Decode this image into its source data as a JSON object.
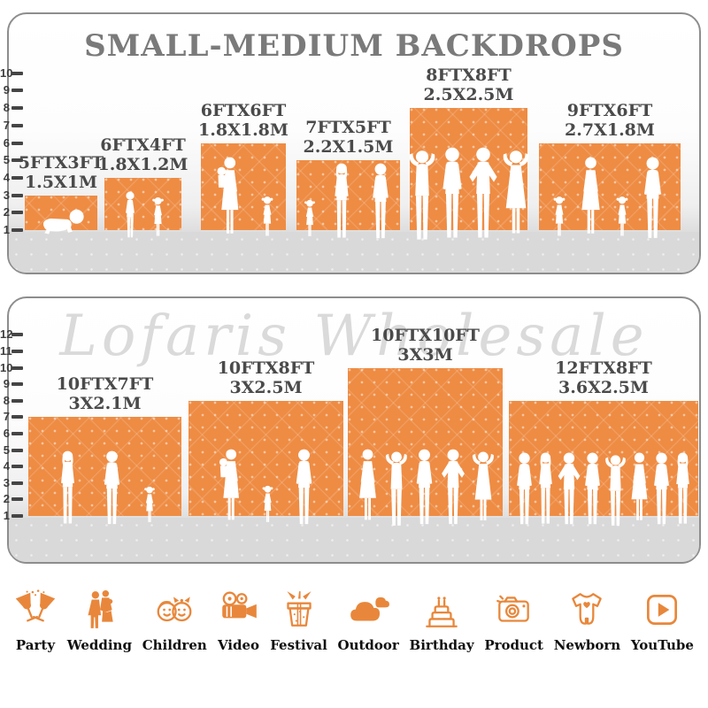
{
  "title": "SMALL-MEDIUM BACKDROPS",
  "watermark": "Lofaris Wholesale",
  "colors": {
    "backdrop_orange": "#EE8C44",
    "icon_orange": "#E8873B",
    "title_gray": "#7A7A7A",
    "label_charcoal": "#4A4A4A",
    "tick_dark": "#454545",
    "panel_border": "#8D8D8D",
    "floor_gray": "#D9D9D9",
    "silhouette_white": "#FFFFFF"
  },
  "panels": [
    {
      "name": "small-medium-backdrops",
      "ruler": [
        "1",
        "2",
        "3",
        "4",
        "5",
        "6",
        "7",
        "8",
        "9",
        "10"
      ],
      "backdrops": [
        {
          "size_ft": "5FTX3FT",
          "size_m": "1.5X1M",
          "height_ft": 3,
          "people": [
            "baby"
          ]
        },
        {
          "size_ft": "6FTX4FT",
          "size_m": "1.8X1.2M",
          "height_ft": 4,
          "people": [
            "boy",
            "girl"
          ]
        },
        {
          "size_ft": "6FTX6FT",
          "size_m": "1.8X1.8M",
          "height_ft": 6,
          "people": [
            "woman-baby",
            "girl"
          ]
        },
        {
          "size_ft": "7FTX5FT",
          "size_m": "2.2X1.5M",
          "height_ft": 5,
          "people": [
            "girl",
            "woman",
            "man"
          ]
        },
        {
          "size_ft": "8FTX8FT",
          "size_m": "2.5X2.5M",
          "height_ft": 8,
          "people": [
            "armsup",
            "man",
            "hips",
            "armsup-dress"
          ]
        },
        {
          "size_ft": "9FTX6FT",
          "size_m": "2.7X1.8M",
          "height_ft": 6,
          "people": [
            "girl",
            "woman-dress",
            "girl",
            "man"
          ]
        }
      ]
    },
    {
      "name": "large-backdrops",
      "ruler": [
        "1",
        "2",
        "3",
        "4",
        "5",
        "6",
        "7",
        "8",
        "9",
        "10",
        "11",
        "12"
      ],
      "backdrops": [
        {
          "size_ft": "10FTX7FT",
          "size_m": "3X2.1M",
          "height_ft": 7,
          "people": [
            "woman",
            "man",
            "girl"
          ]
        },
        {
          "size_ft": "10FTX8FT",
          "size_m": "3X2.5M",
          "height_ft": 8,
          "people": [
            "woman-baby",
            "girl",
            "man"
          ]
        },
        {
          "size_ft": "10FTX10FT",
          "size_m": "3X3M",
          "height_ft": 10,
          "people": [
            "woman-dress",
            "armsup",
            "man",
            "hips",
            "armsup-dress"
          ]
        },
        {
          "size_ft": "12FTX8FT",
          "size_m": "3.6X2.5M",
          "height_ft": 8,
          "people": [
            "man",
            "woman",
            "hips",
            "man",
            "armsup",
            "woman-dress",
            "man",
            "woman"
          ]
        }
      ]
    }
  ],
  "categories": [
    {
      "label": "Party",
      "icon": "party-icon"
    },
    {
      "label": "Wedding",
      "icon": "wedding-icon"
    },
    {
      "label": "Children",
      "icon": "children-icon"
    },
    {
      "label": "Video",
      "icon": "video-icon"
    },
    {
      "label": "Festival",
      "icon": "festival-icon"
    },
    {
      "label": "Outdoor",
      "icon": "outdoor-icon"
    },
    {
      "label": "Birthday",
      "icon": "birthday-icon"
    },
    {
      "label": "Product",
      "icon": "product-icon"
    },
    {
      "label": "Newborn",
      "icon": "newborn-icon"
    },
    {
      "label": "YouTube",
      "icon": "youtube-icon"
    }
  ]
}
